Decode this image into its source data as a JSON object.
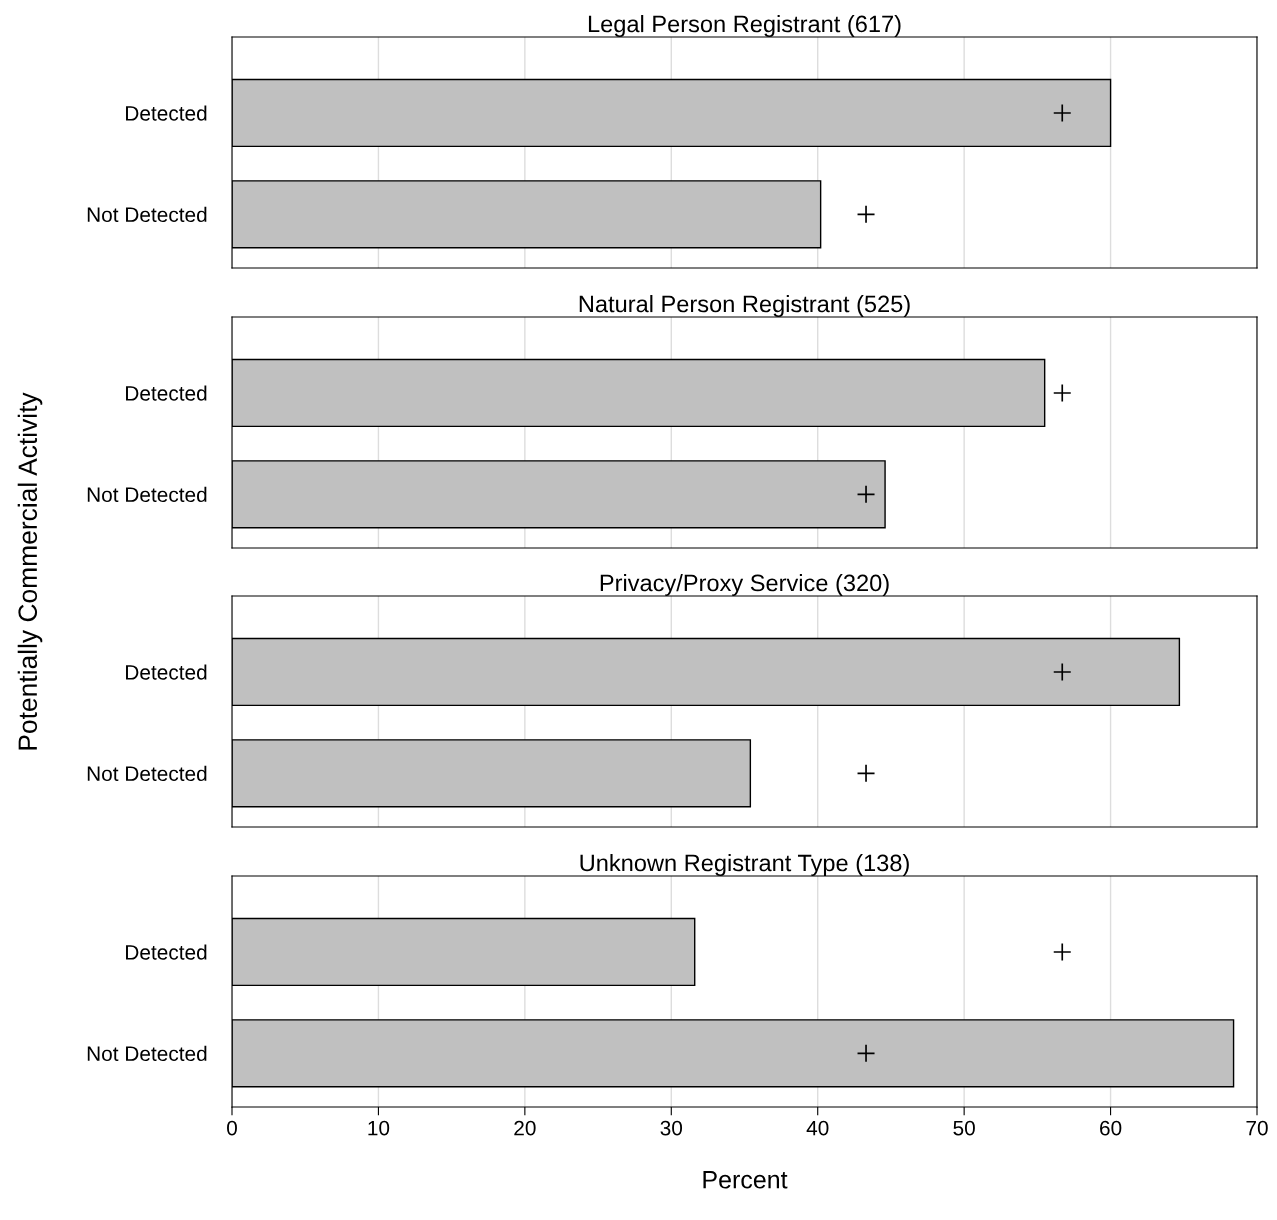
{
  "chart_data": [
    {
      "type": "bar",
      "orientation": "horizontal",
      "title": "Legal Person Registrant (617)",
      "ylabel": "Potentially Commercial Activity",
      "categories": [
        "Detected",
        "Not Detected"
      ],
      "xlim": [
        0,
        70
      ],
      "xticks": [
        0,
        10,
        20,
        30,
        40,
        50,
        60,
        70
      ],
      "grid": "x",
      "tick_labels": "y",
      "series": [
        {
          "color": "#c0c0c0",
          "values": [
            60,
            40.2
          ]
        },
        {
          "type": "scatter",
          "marker": "cross",
          "color": "#000000",
          "values": [
            56.7,
            43.3
          ]
        }
      ]
    },
    {
      "type": "bar",
      "orientation": "horizontal",
      "title": "Natural Person Registrant (525)",
      "categories": [
        "Detected",
        "Not Detected"
      ],
      "xlim": [
        0,
        70
      ],
      "xticks": [
        0,
        10,
        20,
        30,
        40,
        50,
        60,
        70
      ],
      "grid": "x",
      "tick_labels": "y",
      "series": [
        {
          "color": "#c0c0c0",
          "values": [
            55.5,
            44.6
          ]
        },
        {
          "type": "scatter",
          "marker": "cross",
          "color": "#000000",
          "values": [
            56.7,
            43.3
          ]
        }
      ]
    },
    {
      "type": "bar",
      "orientation": "horizontal",
      "title": "Privacy/Proxy Service (320)",
      "categories": [
        "Detected",
        "Not Detected"
      ],
      "xlim": [
        0,
        70
      ],
      "xticks": [
        0,
        10,
        20,
        30,
        40,
        50,
        60,
        70
      ],
      "grid": "x",
      "tick_labels": "y",
      "series": [
        {
          "color": "#c0c0c0",
          "values": [
            64.7,
            35.4
          ]
        },
        {
          "type": "scatter",
          "marker": "cross",
          "color": "#000000",
          "values": [
            56.7,
            43.3
          ]
        }
      ]
    },
    {
      "type": "bar",
      "orientation": "horizontal",
      "title": "Unknown Registrant Type (138)",
      "xlabel": "Percent",
      "categories": [
        "Detected",
        "Not Detected"
      ],
      "xlim": [
        0,
        70
      ],
      "xticks": [
        0,
        10,
        20,
        30,
        40,
        50,
        60,
        70
      ],
      "grid": "x",
      "series": [
        {
          "color": "#c0c0c0",
          "values": [
            31.6,
            68.4
          ]
        },
        {
          "type": "scatter",
          "marker": "cross",
          "color": "#000000",
          "values": [
            56.7,
            43.3
          ]
        }
      ]
    }
  ]
}
